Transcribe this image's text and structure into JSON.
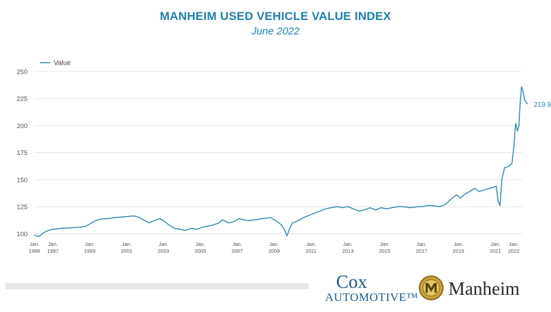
{
  "chart_data": {
    "type": "line",
    "title": "MANHEIM USED VEHICLE VALUE INDEX",
    "subtitle": "June 2022",
    "legend": "Value",
    "legend_position": "top-left",
    "ylim": [
      97,
      250
    ],
    "yticks": [
      100,
      125,
      150,
      175,
      200,
      225,
      250
    ],
    "xlim": [
      1996.0,
      2022.45
    ],
    "xticks": [
      {
        "x": 1996,
        "label1": "Jan.",
        "label2": "1996"
      },
      {
        "x": 1997,
        "label1": "Jan.",
        "label2": "1997"
      },
      {
        "x": 1999,
        "label1": "Jan.",
        "label2": "1999"
      },
      {
        "x": 2001,
        "label1": "Jan.",
        "label2": "2001"
      },
      {
        "x": 2003,
        "label1": "Jan.",
        "label2": "2003"
      },
      {
        "x": 2005,
        "label1": "Jan.",
        "label2": "2005"
      },
      {
        "x": 2007,
        "label1": "Jan.",
        "label2": "2007"
      },
      {
        "x": 2009,
        "label1": "Jan.",
        "label2": "2009"
      },
      {
        "x": 2011,
        "label1": "Jan.",
        "label2": "2011"
      },
      {
        "x": 2013,
        "label1": "Jan.",
        "label2": "2013"
      },
      {
        "x": 2015,
        "label1": "Jan.",
        "label2": "2015"
      },
      {
        "x": 2017,
        "label1": "Jan.",
        "label2": "2017"
      },
      {
        "x": 2019,
        "label1": "Jan.",
        "label2": "2019"
      },
      {
        "x": 2021,
        "label1": "Jan.",
        "label2": "2021"
      },
      {
        "x": 2022,
        "label1": "Jan.",
        "label2": "2022"
      }
    ],
    "grid": true,
    "series": [
      {
        "name": "Value",
        "color": "#2f87a8",
        "end_label": "219.9",
        "points": [
          [
            1996.0,
            99
          ],
          [
            1996.15,
            97.5
          ],
          [
            1996.3,
            98
          ],
          [
            1996.5,
            101
          ],
          [
            1996.75,
            103
          ],
          [
            1997.0,
            104
          ],
          [
            1997.5,
            105
          ],
          [
            1998.0,
            105.5
          ],
          [
            1998.5,
            106
          ],
          [
            1998.8,
            107
          ],
          [
            1999.0,
            109
          ],
          [
            1999.3,
            112
          ],
          [
            1999.6,
            113.5
          ],
          [
            2000.0,
            114
          ],
          [
            2000.4,
            115
          ],
          [
            2000.8,
            115.5
          ],
          [
            2001.1,
            116
          ],
          [
            2001.4,
            116.5
          ],
          [
            2001.7,
            115
          ],
          [
            2002.0,
            112
          ],
          [
            2002.2,
            110
          ],
          [
            2002.5,
            112
          ],
          [
            2002.8,
            114
          ],
          [
            2003.0,
            112
          ],
          [
            2003.3,
            108
          ],
          [
            2003.6,
            105
          ],
          [
            2003.9,
            104
          ],
          [
            2004.2,
            103
          ],
          [
            2004.5,
            105
          ],
          [
            2004.8,
            104
          ],
          [
            2005.1,
            106
          ],
          [
            2005.4,
            107
          ],
          [
            2005.7,
            108
          ],
          [
            2006.0,
            110
          ],
          [
            2006.2,
            113
          ],
          [
            2006.5,
            110
          ],
          [
            2006.8,
            111
          ],
          [
            2007.1,
            114
          ],
          [
            2007.3,
            113
          ],
          [
            2007.6,
            112
          ],
          [
            2008.0,
            113
          ],
          [
            2008.4,
            114
          ],
          [
            2008.8,
            115
          ],
          [
            2009.1,
            112
          ],
          [
            2009.4,
            108
          ],
          [
            2009.55,
            104
          ],
          [
            2009.7,
            98
          ],
          [
            2009.85,
            105
          ],
          [
            2010.0,
            110
          ],
          [
            2010.3,
            112
          ],
          [
            2010.6,
            115
          ],
          [
            2010.9,
            117
          ],
          [
            2011.2,
            119
          ],
          [
            2011.5,
            121
          ],
          [
            2011.8,
            123
          ],
          [
            2012.1,
            124
          ],
          [
            2012.4,
            125
          ],
          [
            2012.7,
            124
          ],
          [
            2013.0,
            125
          ],
          [
            2013.3,
            123
          ],
          [
            2013.6,
            121
          ],
          [
            2013.9,
            122
          ],
          [
            2014.2,
            124
          ],
          [
            2014.5,
            122
          ],
          [
            2014.8,
            124
          ],
          [
            2015.1,
            123
          ],
          [
            2015.4,
            124
          ],
          [
            2015.7,
            125
          ],
          [
            2016.0,
            125
          ],
          [
            2016.4,
            124
          ],
          [
            2016.8,
            125
          ],
          [
            2017.0,
            125
          ],
          [
            2017.3,
            126
          ],
          [
            2017.6,
            126
          ],
          [
            2018.0,
            125
          ],
          [
            2018.3,
            127
          ],
          [
            2018.6,
            132
          ],
          [
            2018.9,
            136
          ],
          [
            2019.1,
            133
          ],
          [
            2019.3,
            136
          ],
          [
            2019.6,
            139
          ],
          [
            2019.9,
            142
          ],
          [
            2020.1,
            139
          ],
          [
            2020.3,
            140
          ],
          [
            2020.5,
            141
          ],
          [
            2020.7,
            142
          ],
          [
            2020.9,
            143
          ],
          [
            2021.05,
            144
          ],
          [
            2021.15,
            130
          ],
          [
            2021.25,
            126
          ],
          [
            2021.35,
            150
          ],
          [
            2021.5,
            161
          ],
          [
            2021.7,
            162
          ],
          [
            2021.9,
            165
          ],
          [
            2022.0,
            180
          ],
          [
            2022.1,
            202
          ],
          [
            2022.2,
            195
          ],
          [
            2022.28,
            200
          ],
          [
            2022.35,
            222
          ],
          [
            2022.42,
            236
          ],
          [
            2022.5,
            232
          ],
          [
            2022.58,
            224
          ],
          [
            2022.64,
            222
          ],
          [
            2022.7,
            221
          ],
          [
            2022.75,
            219.9
          ]
        ]
      }
    ]
  },
  "logos": {
    "cox_top": "Cox",
    "cox_bottom": "AUTOMOTIVE™",
    "manheim": "Manheim"
  }
}
